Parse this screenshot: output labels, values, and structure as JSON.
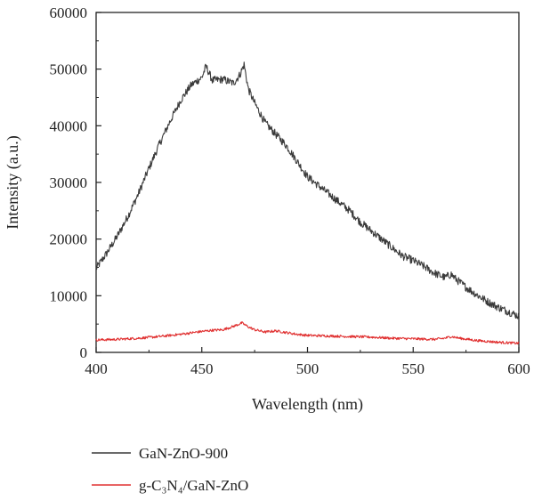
{
  "chart_data": {
    "type": "line",
    "xlabel": "Wavelength (nm)",
    "ylabel": "Intensity (a.u.)",
    "xlim": [
      400,
      600
    ],
    "ylim": [
      0,
      60000
    ],
    "x_ticks": [
      "400",
      "450",
      "500",
      "550",
      "600"
    ],
    "y_ticks": [
      "0",
      "10000",
      "20000",
      "30000",
      "40000",
      "50000",
      "60000"
    ],
    "grid": false,
    "legend_position": "bottom-left, below plot",
    "series": [
      {
        "name": "GaN-ZnO-900",
        "color": "#3a3a3a",
        "points": [
          [
            400,
            14800
          ],
          [
            405,
            17500
          ],
          [
            410,
            20500
          ],
          [
            415,
            24000
          ],
          [
            420,
            28000
          ],
          [
            425,
            32500
          ],
          [
            430,
            36800
          ],
          [
            435,
            40800
          ],
          [
            440,
            44500
          ],
          [
            445,
            47200
          ],
          [
            450,
            48500
          ],
          [
            452,
            50500
          ],
          [
            455,
            48000
          ],
          [
            460,
            48200
          ],
          [
            465,
            47500
          ],
          [
            468,
            49000
          ],
          [
            470,
            50800
          ],
          [
            472,
            46500
          ],
          [
            475,
            44000
          ],
          [
            480,
            40500
          ],
          [
            485,
            38500
          ],
          [
            490,
            36500
          ],
          [
            495,
            33800
          ],
          [
            500,
            31000
          ],
          [
            505,
            29500
          ],
          [
            510,
            28000
          ],
          [
            515,
            26500
          ],
          [
            520,
            25000
          ],
          [
            525,
            23000
          ],
          [
            530,
            21500
          ],
          [
            535,
            20000
          ],
          [
            540,
            18500
          ],
          [
            545,
            17000
          ],
          [
            550,
            16200
          ],
          [
            555,
            15200
          ],
          [
            560,
            14000
          ],
          [
            565,
            13200
          ],
          [
            568,
            13800
          ],
          [
            570,
            13000
          ],
          [
            575,
            11500
          ],
          [
            580,
            10200
          ],
          [
            585,
            9000
          ],
          [
            590,
            8000
          ],
          [
            595,
            7200
          ],
          [
            600,
            6400
          ]
        ]
      },
      {
        "name": "g-C₃N₄/GaN-ZnO",
        "color": "#e03030",
        "points": [
          [
            400,
            2200
          ],
          [
            410,
            2300
          ],
          [
            420,
            2500
          ],
          [
            430,
            2800
          ],
          [
            440,
            3200
          ],
          [
            450,
            3700
          ],
          [
            455,
            3900
          ],
          [
            460,
            4000
          ],
          [
            465,
            4600
          ],
          [
            469,
            5200
          ],
          [
            472,
            4500
          ],
          [
            475,
            4000
          ],
          [
            480,
            3600
          ],
          [
            485,
            3800
          ],
          [
            490,
            3500
          ],
          [
            495,
            3200
          ],
          [
            500,
            3000
          ],
          [
            510,
            2900
          ],
          [
            520,
            2800
          ],
          [
            530,
            2700
          ],
          [
            540,
            2500
          ],
          [
            550,
            2400
          ],
          [
            560,
            2300
          ],
          [
            565,
            2500
          ],
          [
            568,
            2800
          ],
          [
            572,
            2500
          ],
          [
            580,
            2100
          ],
          [
            590,
            1800
          ],
          [
            600,
            1600
          ]
        ]
      }
    ]
  }
}
